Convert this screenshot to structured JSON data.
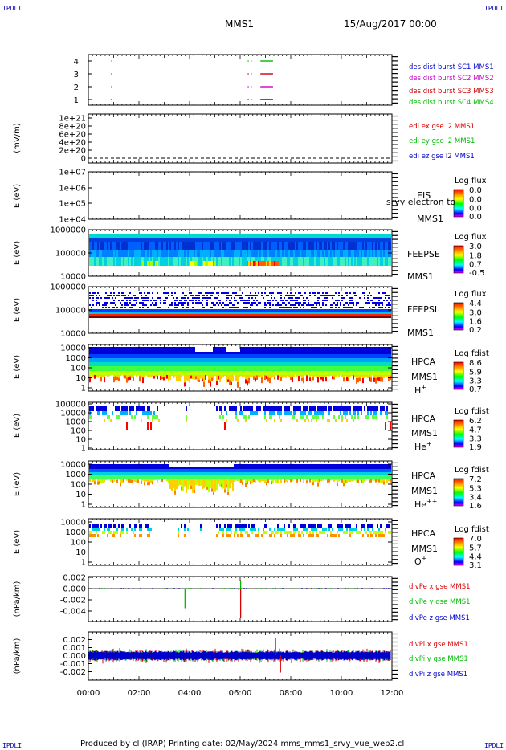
{
  "header": {
    "corner_tl": "IPDLI",
    "corner_tr": "IPDLI",
    "corner_bl": "IPDLI",
    "corner_br": "IPDLI",
    "spacecraft": "MMS1",
    "datetime": "15/Aug/2017 00:00"
  },
  "footer": {
    "text": "Produced by cl (IRAP)   Printing date: 02/May/2024   mms_mms1_srvy_vue_web2.cl"
  },
  "time_axis": {
    "ticks": [
      "00:00",
      "02:00",
      "04:00",
      "06:00",
      "08:00",
      "10:00",
      "12:00"
    ],
    "range_hours": [
      0,
      12
    ]
  },
  "colors": {
    "mms1": "#0000cc",
    "mms2": "#cc00cc",
    "mms3": "#cc0000",
    "mms4": "#00bb00",
    "x": "#dd0000",
    "y": "#00bb00",
    "z": "#0000cc"
  },
  "chart_data": [
    {
      "type": "scatter",
      "panel": "burst",
      "yticks": [
        "4",
        "3",
        "2",
        "1"
      ],
      "legend": [
        "des dist burst SC1 MMS1",
        "des dist burst SC2 MMS2",
        "des dist burst SC3 MMS3",
        "des dist burst SC4 MMS4"
      ],
      "series": [
        {
          "sc": 1,
          "intervals": [
            [
              0.9,
              0.92
            ],
            [
              6.3,
              6.34
            ],
            [
              6.8,
              7.3
            ]
          ]
        },
        {
          "sc": 2,
          "intervals": [
            [
              0.9,
              0.92
            ],
            [
              6.3,
              6.34
            ],
            [
              6.8,
              7.3
            ]
          ]
        },
        {
          "sc": 3,
          "intervals": [
            [
              0.9,
              0.92
            ],
            [
              6.3,
              6.34
            ],
            [
              6.8,
              7.3
            ]
          ]
        },
        {
          "sc": 4,
          "intervals": [
            [
              0.9,
              0.92
            ],
            [
              6.3,
              6.34
            ],
            [
              6.8,
              7.3
            ]
          ]
        }
      ]
    },
    {
      "type": "line",
      "panel": "edi",
      "ylabel": "(mV/m)",
      "yticks": [
        "1e+21",
        "8e+20",
        "6e+20",
        "4e+20",
        "2e+20",
        "0"
      ],
      "legend": [
        "edi ex gse l2 MMS1",
        "edi ey gse l2 MMS1",
        "edi ez gse l2 MMS1"
      ],
      "values_note_level": 0
    },
    {
      "type": "heatmap",
      "panel": "eis",
      "ylabel": "E (eV)",
      "yticks": [
        "1e+07",
        "1e+06",
        "1e+05",
        "1e+04"
      ],
      "side_top": "EIS",
      "side_bottom": "MMS1",
      "overlay": "srvy electron to",
      "colorbar_title": "Log flux",
      "colorbar_ticks": [
        "0.0",
        "0.0",
        "0.0",
        "0.0"
      ]
    },
    {
      "type": "heatmap",
      "panel": "feeps_e",
      "ylabel": "E (eV)",
      "yticks": [
        "1000000",
        "100000",
        "10000"
      ],
      "side_top": "FEEPSE",
      "side_bottom": "MMS1",
      "colorbar_title": "Log flux",
      "colorbar_ticks": [
        "3.0",
        "1.8",
        "0.7",
        "-0.5"
      ]
    },
    {
      "type": "heatmap",
      "panel": "feeps_i",
      "ylabel": "E (eV)",
      "yticks": [
        "1000000",
        "100000",
        "10000"
      ],
      "side_top": "FEEPSI",
      "side_bottom": "MMS1",
      "colorbar_title": "Log flux",
      "colorbar_ticks": [
        "4.4",
        "3.0",
        "1.6",
        "0.2"
      ]
    },
    {
      "type": "heatmap",
      "panel": "hpca_h",
      "ylabel": "E (eV)",
      "yticks": [
        "10000",
        "1000",
        "100",
        "10",
        "1"
      ],
      "side_top": "HPCA",
      "side_bottom": "MMS1",
      "species": "H",
      "species_sup": "+",
      "colorbar_title": "Log fdist",
      "colorbar_ticks": [
        "8.6",
        "5.9",
        "3.3",
        "0.7"
      ]
    },
    {
      "type": "heatmap",
      "panel": "hpca_he",
      "ylabel": "E (eV)",
      "yticks": [
        "100000",
        "10000",
        "1000",
        "100",
        "10",
        "1"
      ],
      "side_top": "HPCA",
      "side_bottom": "MMS1",
      "species": "He",
      "species_sup": "+",
      "colorbar_title": "Log fdist",
      "colorbar_ticks": [
        "6.2",
        "4.7",
        "3.3",
        "1.9"
      ]
    },
    {
      "type": "heatmap",
      "panel": "hpca_hepp",
      "ylabel": "E (eV)",
      "yticks": [
        "10000",
        "1000",
        "100",
        "10",
        "1"
      ],
      "side_top": "HPCA",
      "side_bottom": "MMS1",
      "species": "He",
      "species_sup": "++",
      "colorbar_title": "Log fdist",
      "colorbar_ticks": [
        "7.2",
        "5.3",
        "3.4",
        "1.6"
      ]
    },
    {
      "type": "heatmap",
      "panel": "hpca_o",
      "ylabel": "E (eV)",
      "yticks": [
        "10000",
        "1000",
        "100",
        "10",
        "1"
      ],
      "side_top": "HPCA",
      "side_bottom": "MMS1",
      "species": "O",
      "species_sup": "+",
      "colorbar_title": "Log fdist",
      "colorbar_ticks": [
        "7.0",
        "5.7",
        "4.4",
        "3.1"
      ]
    },
    {
      "type": "line",
      "panel": "divpe",
      "ylabel": "(nPa/km)",
      "yticks": [
        "0.002",
        "0.000",
        "-0.002",
        "-0.004"
      ],
      "ylim": [
        -0.0055,
        0.0022
      ],
      "legend": [
        "divPe x gse MMS1",
        "divPe y gse MMS1",
        "divPe z gse MMS1"
      ],
      "spikes": [
        {
          "t": 3.82,
          "value": -0.0035,
          "comp": "y"
        },
        {
          "t": 6.02,
          "value": -0.0052,
          "comp": "x"
        },
        {
          "t": 6.02,
          "value": 0.0015,
          "comp": "y"
        },
        {
          "t": 5.95,
          "value": -0.0003,
          "comp": "z"
        }
      ]
    },
    {
      "type": "line",
      "panel": "divpi",
      "ylabel": "(nPa/km)",
      "yticks": [
        "0.002",
        "0.001",
        "0.000",
        "-0.001",
        "-0.002"
      ],
      "ylim": [
        -0.0027,
        0.0027
      ],
      "legend": [
        "divPi x gse MMS1",
        "divPi y gse MMS1",
        "divPi z gse MMS1"
      ],
      "noise_amplitude": {
        "x": 0.0009,
        "y": 0.0008,
        "z": 0.0005
      },
      "peak": {
        "t": 7.4,
        "value": 0.0022
      }
    }
  ]
}
